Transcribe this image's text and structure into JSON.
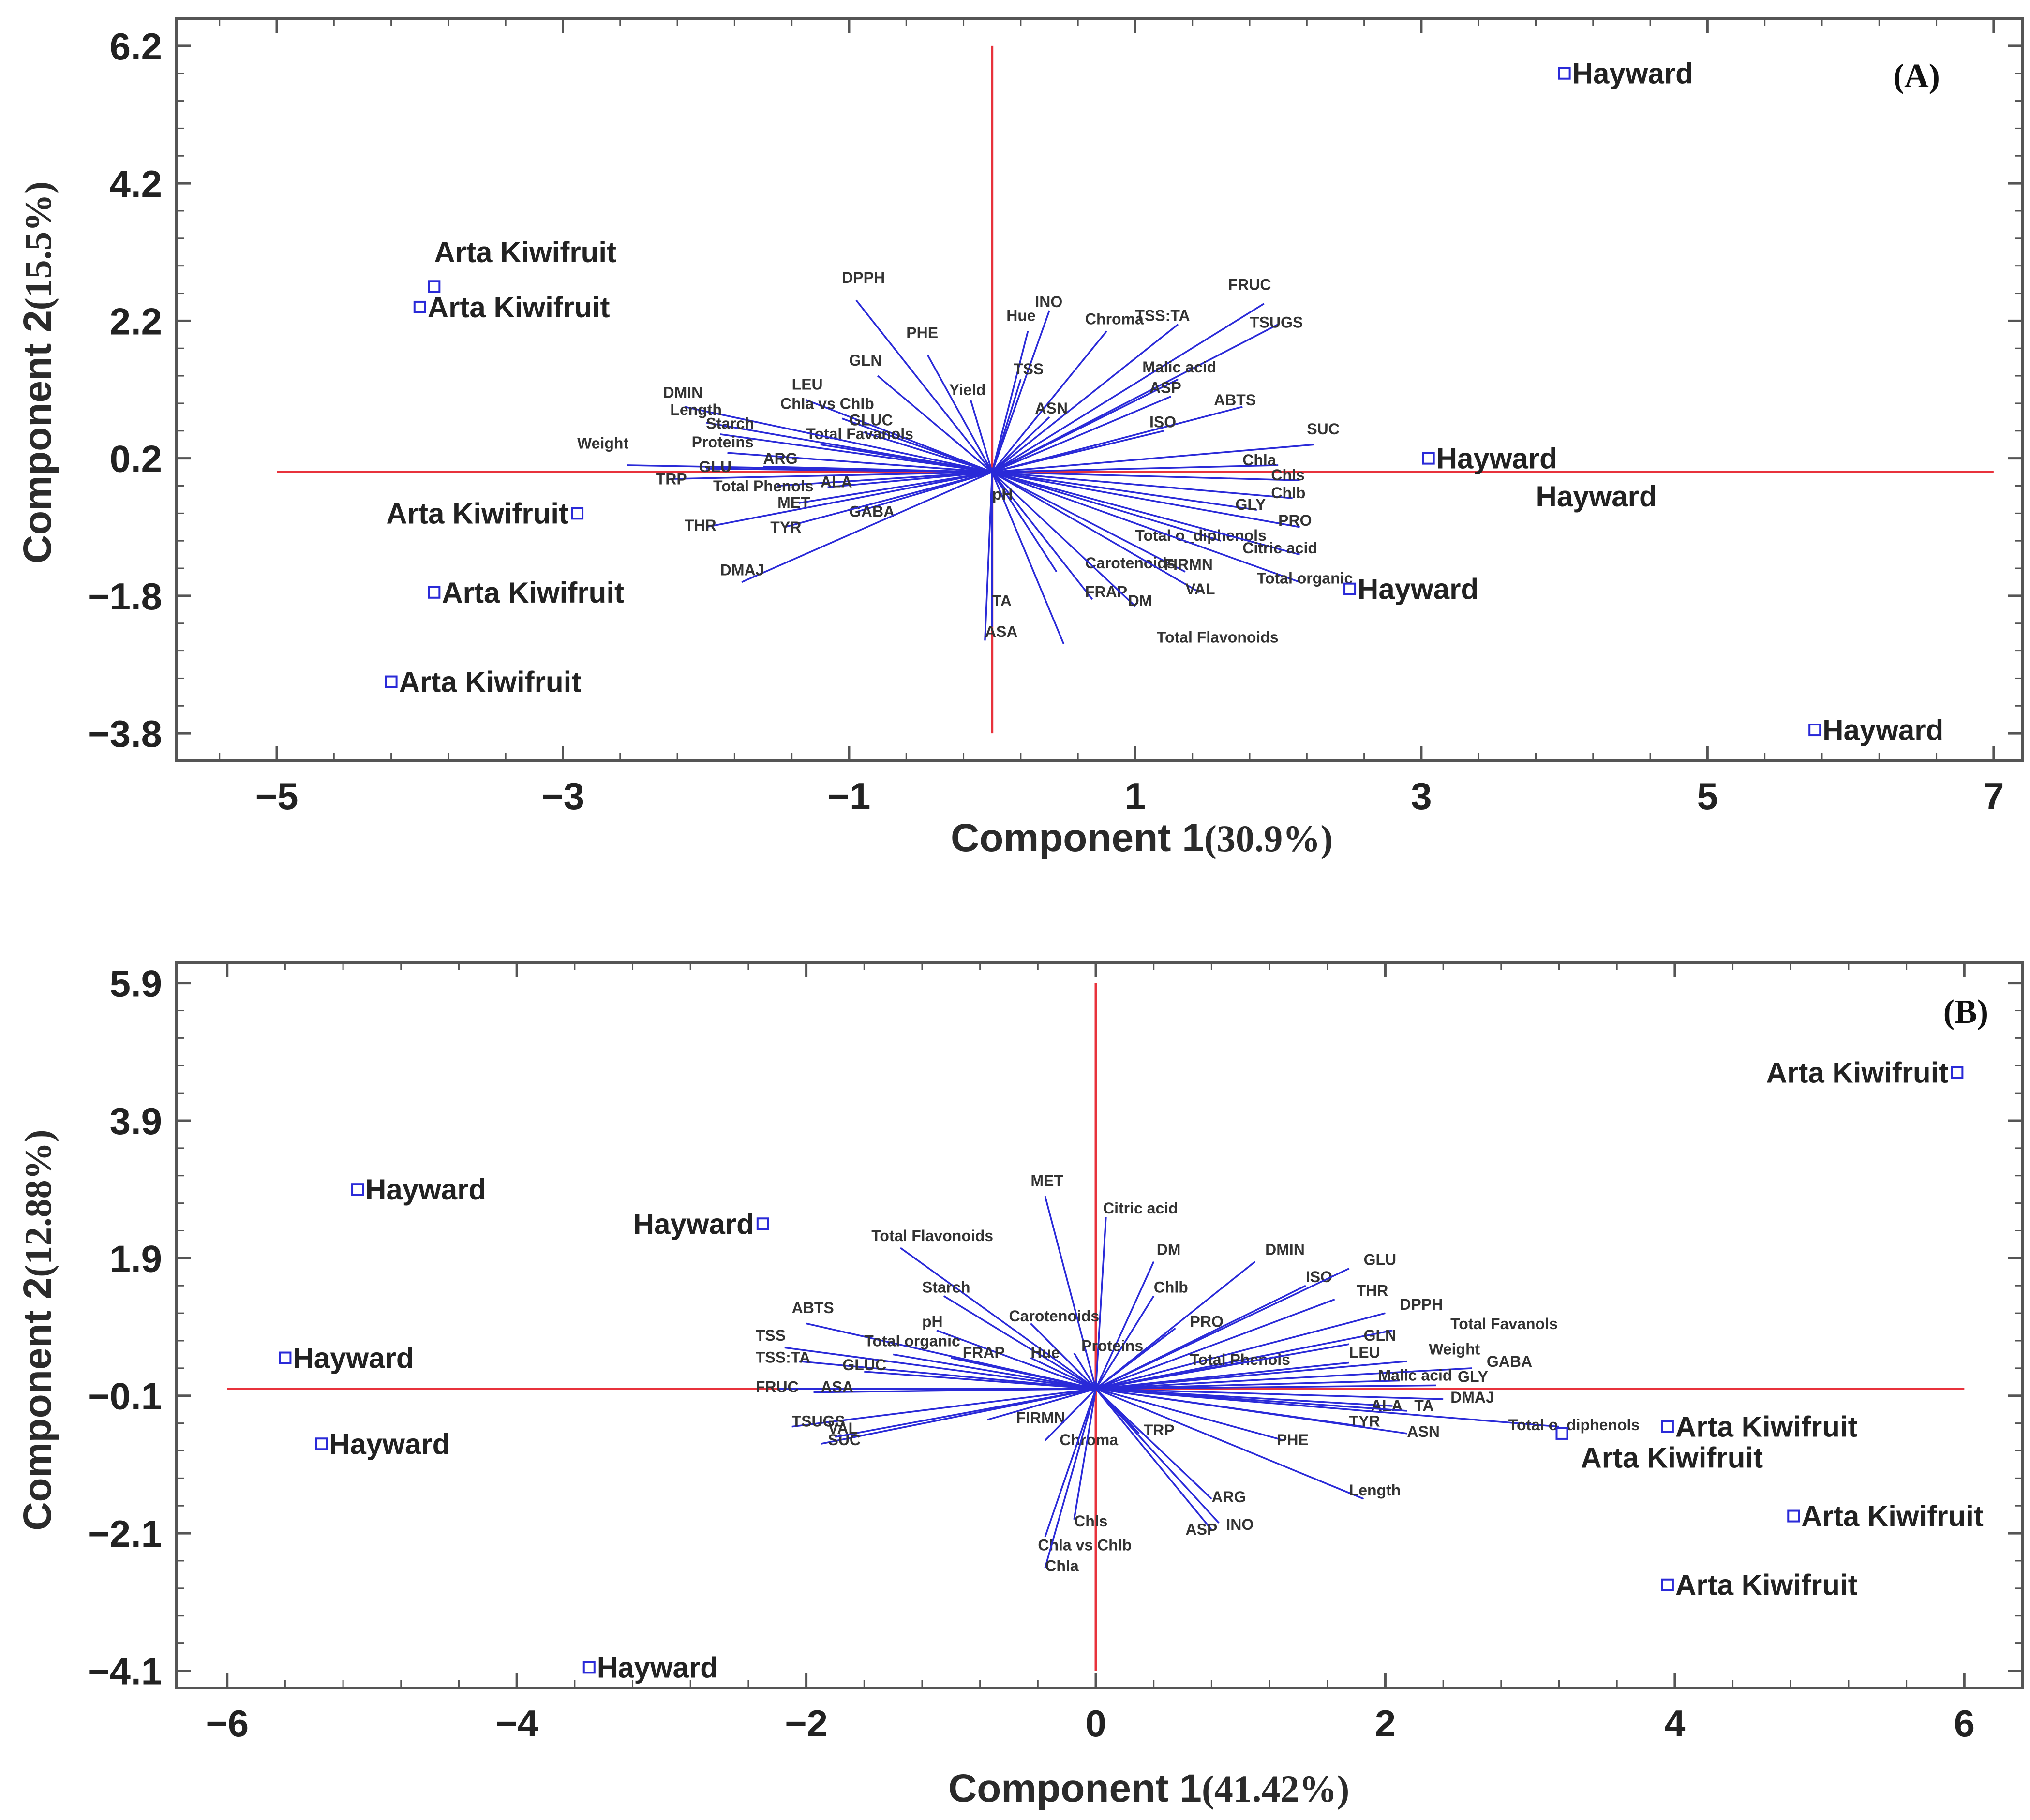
{
  "chart_data": [
    {
      "type": "scatter",
      "panel_label": "(A)",
      "xlabel": "Component 1",
      "xlabel_pct": "(30.9%)",
      "ylabel": "Component 2",
      "ylabel_pct": "(15.5%)",
      "xlim": [
        -5.7,
        7.2
      ],
      "ylim": [
        -4.2,
        6.6
      ],
      "xticks": [
        -5,
        -3,
        -1,
        1,
        3,
        5,
        7
      ],
      "xtick_labels": [
        "−5",
        "−3",
        "−1",
        "1",
        "3",
        "5",
        "7"
      ],
      "yticks": [
        6.2,
        4.2,
        2.2,
        0.2,
        -1.8,
        -3.8
      ],
      "ytick_labels": [
        "6.2",
        "4.2",
        "2.2",
        "0.2",
        "−1.8",
        "−3.8"
      ],
      "ref_x": [
        -5,
        7
      ],
      "ref_y": [
        -3.8,
        6.2
      ],
      "points": [
        {
          "x": 4.0,
          "y": 5.8,
          "label": "Hayward",
          "label_side": "right"
        },
        {
          "x": -3.9,
          "y": 2.7,
          "label": "",
          "label_side": "right"
        },
        {
          "x": -4.0,
          "y": 2.4,
          "label": "Arta Kiwifruit",
          "label_side": "right"
        },
        {
          "x": 3.05,
          "y": 0.2,
          "label": "Hayward",
          "label_side": "right"
        },
        {
          "x": -2.9,
          "y": -0.6,
          "label": "Arta Kiwifruit",
          "label_side": "left"
        },
        {
          "x": -3.9,
          "y": -1.75,
          "label": "Arta Kiwifruit",
          "label_side": "right"
        },
        {
          "x": 2.5,
          "y": -1.7,
          "label": "Hayward",
          "label_side": "right"
        },
        {
          "x": -4.2,
          "y": -3.05,
          "label": "Arta Kiwifruit",
          "label_side": "right"
        },
        {
          "x": 5.75,
          "y": -3.75,
          "label": "Hayward",
          "label_side": "right"
        }
      ],
      "free_labels": [
        {
          "x": -3.9,
          "y": 3.2,
          "text": "Arta Kiwifruit"
        },
        {
          "x": 3.8,
          "y": -0.35,
          "text": "Hayward"
        }
      ],
      "vectors": [
        {
          "name": "DPPH",
          "x": -0.95,
          "y": 2.5,
          "lx": -1.05,
          "ly": 2.75
        },
        {
          "name": "PHE",
          "x": -0.45,
          "y": 1.7,
          "lx": -0.6,
          "ly": 1.95
        },
        {
          "name": "GLN",
          "x": -0.8,
          "y": 1.4,
          "lx": -1.0,
          "ly": 1.55
        },
        {
          "name": "LEU",
          "x": -1.3,
          "y": 1.05,
          "lx": -1.4,
          "ly": 1.2
        },
        {
          "name": "Chla vs Chlb",
          "x": -1.05,
          "y": 0.78,
          "lx": -1.48,
          "ly": 0.92
        },
        {
          "name": "GLUC",
          "x": -0.9,
          "y": 0.58,
          "lx": -1.0,
          "ly": 0.68
        },
        {
          "name": "Total Favanols",
          "x": -1.2,
          "y": 0.4,
          "lx": -1.3,
          "ly": 0.48
        },
        {
          "name": "DMIN",
          "x": -2.15,
          "y": 0.95,
          "lx": -2.3,
          "ly": 1.08
        },
        {
          "name": "Length",
          "x": -2.0,
          "y": 0.72,
          "lx": -2.25,
          "ly": 0.83
        },
        {
          "name": "Starch",
          "x": -1.9,
          "y": 0.55,
          "lx": -2.0,
          "ly": 0.63
        },
        {
          "name": "Proteins",
          "x": -1.85,
          "y": 0.28,
          "lx": -2.1,
          "ly": 0.36
        },
        {
          "name": "Weight",
          "x": -2.55,
          "y": 0.1,
          "lx": -2.9,
          "ly": 0.34
        },
        {
          "name": "ARG",
          "x": -1.6,
          "y": 0.08,
          "lx": -1.6,
          "ly": 0.12
        },
        {
          "name": "GLU",
          "x": -2.0,
          "y": 0.05,
          "lx": -2.05,
          "ly": 0.0
        },
        {
          "name": "TRP",
          "x": -2.25,
          "y": -0.1,
          "lx": -2.35,
          "ly": -0.18
        },
        {
          "name": "Total Phenols",
          "x": -1.5,
          "y": -0.2,
          "lx": -1.95,
          "ly": -0.28
        },
        {
          "name": "ALA",
          "x": -1.15,
          "y": -0.22,
          "lx": -1.2,
          "ly": -0.22
        },
        {
          "name": "MET",
          "x": -1.35,
          "y": -0.45,
          "lx": -1.5,
          "ly": -0.52
        },
        {
          "name": "GABA",
          "x": -0.95,
          "y": -0.58,
          "lx": -1.0,
          "ly": -0.65
        },
        {
          "name": "THR",
          "x": -2.0,
          "y": -0.8,
          "lx": -2.15,
          "ly": -0.85
        },
        {
          "name": "TYR",
          "x": -1.45,
          "y": -0.8,
          "lx": -1.55,
          "ly": -0.88
        },
        {
          "name": "DMAJ",
          "x": -1.75,
          "y": -1.6,
          "lx": -1.9,
          "ly": -1.5
        },
        {
          "name": "Hue",
          "x": 0.25,
          "y": 2.05,
          "lx": 0.1,
          "ly": 2.2
        },
        {
          "name": "INO",
          "x": 0.4,
          "y": 2.35,
          "lx": 0.3,
          "ly": 2.4
        },
        {
          "name": "Chroma",
          "x": 0.8,
          "y": 2.05,
          "lx": 0.65,
          "ly": 2.15
        },
        {
          "name": "TSS:TA",
          "x": 1.3,
          "y": 2.15,
          "lx": 1.0,
          "ly": 2.2
        },
        {
          "name": "FRUC",
          "x": 1.9,
          "y": 2.45,
          "lx": 1.65,
          "ly": 2.65
        },
        {
          "name": "TSUGS",
          "x": 2.0,
          "y": 2.15,
          "lx": 1.8,
          "ly": 2.1
        },
        {
          "name": "TSS",
          "x": 0.2,
          "y": 1.35,
          "lx": 0.15,
          "ly": 1.42
        },
        {
          "name": "Yield",
          "x": -0.15,
          "y": 1.05,
          "lx": -0.3,
          "ly": 1.12
        },
        {
          "name": "ASN",
          "x": 0.4,
          "y": 0.8,
          "lx": 0.3,
          "ly": 0.85
        },
        {
          "name": "Malic acid",
          "x": 1.3,
          "y": 1.35,
          "lx": 1.05,
          "ly": 1.45
        },
        {
          "name": "ASP",
          "x": 1.25,
          "y": 1.1,
          "lx": 1.1,
          "ly": 1.15
        },
        {
          "name": "ABTS",
          "x": 1.75,
          "y": 0.95,
          "lx": 1.55,
          "ly": 0.97
        },
        {
          "name": "ISO",
          "x": 1.2,
          "y": 0.6,
          "lx": 1.1,
          "ly": 0.65
        },
        {
          "name": "SUC",
          "x": 2.25,
          "y": 0.4,
          "lx": 2.2,
          "ly": 0.55
        },
        {
          "name": "Chla",
          "x": 2.0,
          "y": 0.1,
          "lx": 1.75,
          "ly": 0.1
        },
        {
          "name": "Chls",
          "x": 2.15,
          "y": -0.12,
          "lx": 1.95,
          "ly": -0.12
        },
        {
          "name": "Chlb",
          "x": 2.1,
          "y": -0.38,
          "lx": 1.95,
          "ly": -0.38
        },
        {
          "name": "GLY",
          "x": 1.85,
          "y": -0.55,
          "lx": 1.7,
          "ly": -0.55
        },
        {
          "name": "PRO",
          "x": 2.15,
          "y": -0.8,
          "lx": 2.0,
          "ly": -0.78
        },
        {
          "name": "Total o_diphenols",
          "x": 1.6,
          "y": -1.0,
          "lx": 1.0,
          "ly": -1.0
        },
        {
          "name": "Citric acid",
          "x": 2.15,
          "y": -1.2,
          "lx": 1.75,
          "ly": -1.18
        },
        {
          "name": "FIRMN",
          "x": 1.35,
          "y": -1.45,
          "lx": 1.2,
          "ly": -1.42
        },
        {
          "name": "Total organic",
          "x": 2.15,
          "y": -1.6,
          "lx": 1.85,
          "ly": -1.62
        },
        {
          "name": "Carotenoids",
          "x": 0.45,
          "y": -1.45,
          "lx": 0.65,
          "ly": -1.4
        },
        {
          "name": "FRAP",
          "x": 0.7,
          "y": -1.85,
          "lx": 0.65,
          "ly": -1.82
        },
        {
          "name": "DM",
          "x": 1.0,
          "y": -1.95,
          "lx": 0.95,
          "ly": -1.95
        },
        {
          "name": "VAL",
          "x": 1.45,
          "y": -1.75,
          "lx": 1.35,
          "ly": -1.78
        },
        {
          "name": "TA",
          "x": 0.0,
          "y": -2.25,
          "lx": 0.0,
          "ly": -1.95
        },
        {
          "name": "ASA",
          "x": -0.05,
          "y": -2.45,
          "lx": -0.05,
          "ly": -2.4
        },
        {
          "name": "Total Flavonoids",
          "x": 0.5,
          "y": -2.5,
          "lx": 1.15,
          "ly": -2.48
        },
        {
          "name": "pH",
          "x": 0.0,
          "y": -0.45,
          "lx": 0.0,
          "ly": -0.4
        }
      ]
    },
    {
      "type": "scatter",
      "panel_label": "(B)",
      "xlabel": "Component 1",
      "xlabel_pct": "(41.42%)",
      "ylabel": "Component 2",
      "ylabel_pct": "(12.88%)",
      "xlim": [
        -6.35,
        6.4
      ],
      "ylim": [
        -4.35,
        6.2
      ],
      "xticks": [
        -6,
        -4,
        -2,
        0,
        2,
        4,
        6
      ],
      "xtick_labels": [
        "−6",
        "−4",
        "−2",
        "0",
        "2",
        "4",
        "6"
      ],
      "yticks": [
        5.9,
        3.9,
        1.9,
        -0.1,
        -2.1,
        -4.1
      ],
      "ytick_labels": [
        "5.9",
        "3.9",
        "1.9",
        "−0.1",
        "−2.1",
        "−4.1"
      ],
      "ref_x": [
        -6,
        6
      ],
      "ref_y": [
        -4.1,
        5.9
      ],
      "points": [
        {
          "x": 5.95,
          "y": 4.6,
          "label": "Arta Kiwifruit",
          "label_side": "left"
        },
        {
          "x": -5.1,
          "y": 2.9,
          "label": "Hayward",
          "label_side": "right"
        },
        {
          "x": -2.3,
          "y": 2.4,
          "label": "Hayward",
          "label_side": "left"
        },
        {
          "x": -5.6,
          "y": 0.45,
          "label": "Hayward",
          "label_side": "right"
        },
        {
          "x": -5.35,
          "y": -0.8,
          "label": "Hayward",
          "label_side": "right"
        },
        {
          "x": 3.95,
          "y": -0.55,
          "label": "Arta Kiwifruit",
          "label_side": "right"
        },
        {
          "x": 3.22,
          "y": -0.65,
          "label": "",
          "label_side": "right"
        },
        {
          "x": 4.82,
          "y": -1.85,
          "label": "Arta Kiwifruit",
          "label_side": "right"
        },
        {
          "x": 3.95,
          "y": -2.85,
          "label": "Arta Kiwifruit",
          "label_side": "right"
        },
        {
          "x": -3.5,
          "y": -4.05,
          "label": "Hayward",
          "label_side": "right"
        }
      ],
      "free_labels": [
        {
          "x": 3.35,
          "y": -1.0,
          "text": "Arta Kiwifruit"
        }
      ],
      "vectors": [
        {
          "name": "MET",
          "x": -0.35,
          "y": 2.8,
          "lx": -0.45,
          "ly": 2.95
        },
        {
          "name": "Citric acid",
          "x": 0.07,
          "y": 2.5,
          "lx": 0.05,
          "ly": 2.55
        },
        {
          "name": "Total Flavonoids",
          "x": -1.35,
          "y": 2.05,
          "lx": -1.55,
          "ly": 2.15
        },
        {
          "name": "DM",
          "x": 0.4,
          "y": 1.85,
          "lx": 0.42,
          "ly": 1.95
        },
        {
          "name": "DMIN",
          "x": 1.1,
          "y": 1.85,
          "lx": 1.17,
          "ly": 1.95
        },
        {
          "name": "Starch",
          "x": -1.05,
          "y": 1.35,
          "lx": -1.2,
          "ly": 1.4
        },
        {
          "name": "Chlb",
          "x": 0.4,
          "y": 1.35,
          "lx": 0.4,
          "ly": 1.4
        },
        {
          "name": "ISO",
          "x": 1.45,
          "y": 1.5,
          "lx": 1.45,
          "ly": 1.55
        },
        {
          "name": "GLU",
          "x": 1.75,
          "y": 1.75,
          "lx": 1.85,
          "ly": 1.8
        },
        {
          "name": "THR",
          "x": 1.65,
          "y": 1.3,
          "lx": 1.8,
          "ly": 1.35
        },
        {
          "name": "DPPH",
          "x": 2.0,
          "y": 1.1,
          "lx": 2.1,
          "ly": 1.15
        },
        {
          "name": "Total Favanols",
          "x": 2.05,
          "y": 0.85,
          "lx": 2.45,
          "ly": 0.87
        },
        {
          "name": "Carotenoids",
          "x": -0.45,
          "y": 0.95,
          "lx": -0.6,
          "ly": 0.98
        },
        {
          "name": "pH",
          "x": -1.1,
          "y": 0.85,
          "lx": -1.2,
          "ly": 0.9
        },
        {
          "name": "PRO",
          "x": 0.55,
          "y": 0.88,
          "lx": 0.65,
          "ly": 0.9
        },
        {
          "name": "ABTS",
          "x": -2.0,
          "y": 0.95,
          "lx": -2.1,
          "ly": 1.1
        },
        {
          "name": "TSS",
          "x": -2.15,
          "y": 0.6,
          "lx": -2.35,
          "ly": 0.7
        },
        {
          "name": "Total organic",
          "x": -1.4,
          "y": 0.5,
          "lx": -1.6,
          "ly": 0.62
        },
        {
          "name": "TSS:TA",
          "x": -2.05,
          "y": 0.4,
          "lx": -2.35,
          "ly": 0.38
        },
        {
          "name": "GLUC",
          "x": -1.6,
          "y": 0.25,
          "lx": -1.75,
          "ly": 0.27
        },
        {
          "name": "FRAP",
          "x": -1.0,
          "y": 0.45,
          "lx": -0.92,
          "ly": 0.45
        },
        {
          "name": "Hue",
          "x": -0.45,
          "y": 0.45,
          "lx": -0.45,
          "ly": 0.45
        },
        {
          "name": "Proteins",
          "x": -0.15,
          "y": 0.52,
          "lx": -0.1,
          "ly": 0.55
        },
        {
          "name": "Total Phenols",
          "x": 1.05,
          "y": 0.4,
          "lx": 0.65,
          "ly": 0.35
        },
        {
          "name": "GLN",
          "x": 1.75,
          "y": 0.65,
          "lx": 1.85,
          "ly": 0.7
        },
        {
          "name": "LEU",
          "x": 1.75,
          "y": 0.38,
          "lx": 1.75,
          "ly": 0.45
        },
        {
          "name": "Weight",
          "x": 2.15,
          "y": 0.4,
          "lx": 2.3,
          "ly": 0.5
        },
        {
          "name": "GABA",
          "x": 2.6,
          "y": 0.3,
          "lx": 2.7,
          "ly": 0.32
        },
        {
          "name": "Malic acid",
          "x": 2.1,
          "y": 0.12,
          "lx": 1.95,
          "ly": 0.12
        },
        {
          "name": "GLY",
          "x": 2.35,
          "y": 0.05,
          "lx": 2.5,
          "ly": 0.1
        },
        {
          "name": "FRUC",
          "x": -2.2,
          "y": 0.0,
          "lx": -2.35,
          "ly": -0.05
        },
        {
          "name": "ASA",
          "x": -1.95,
          "y": -0.05,
          "lx": -1.9,
          "ly": -0.05
        },
        {
          "name": "DMAJ",
          "x": 2.4,
          "y": -0.15,
          "lx": 2.45,
          "ly": -0.2
        },
        {
          "name": "ALA",
          "x": 2.05,
          "y": -0.25,
          "lx": 1.9,
          "ly": -0.32
        },
        {
          "name": "TA",
          "x": 2.15,
          "y": -0.32,
          "lx": 2.2,
          "ly": -0.32
        },
        {
          "name": "TSUGS",
          "x": -2.1,
          "y": -0.55,
          "lx": -2.1,
          "ly": -0.55
        },
        {
          "name": "SUC",
          "x": -1.9,
          "y": -0.8,
          "lx": -1.85,
          "ly": -0.82
        },
        {
          "name": "VAL",
          "x": -1.8,
          "y": -0.7,
          "lx": -1.85,
          "ly": -0.65
        },
        {
          "name": "TYR",
          "x": 1.85,
          "y": -0.55,
          "lx": 1.75,
          "ly": -0.55
        },
        {
          "name": "ASN",
          "x": 2.15,
          "y": -0.65,
          "lx": 2.15,
          "ly": -0.7
        },
        {
          "name": "Total o_diphenols",
          "x": 3.2,
          "y": -0.55,
          "lx": 2.85,
          "ly": -0.6
        },
        {
          "name": "FIRMN",
          "x": -0.75,
          "y": -0.45,
          "lx": -0.55,
          "ly": -0.5
        },
        {
          "name": "Chroma",
          "x": -0.35,
          "y": -0.75,
          "lx": -0.25,
          "ly": -0.82
        },
        {
          "name": "TRP",
          "x": 0.3,
          "y": -0.65,
          "lx": 0.33,
          "ly": -0.68
        },
        {
          "name": "PHE",
          "x": 1.3,
          "y": -0.75,
          "lx": 1.25,
          "ly": -0.82
        },
        {
          "name": "Length",
          "x": 1.85,
          "y": -1.6,
          "lx": 1.75,
          "ly": -1.55
        },
        {
          "name": "ARG",
          "x": 0.8,
          "y": -1.6,
          "lx": 0.8,
          "ly": -1.65
        },
        {
          "name": "INO",
          "x": 0.85,
          "y": -1.95,
          "lx": 0.9,
          "ly": -2.05
        },
        {
          "name": "ASP",
          "x": 0.8,
          "y": -2.05,
          "lx": 0.62,
          "ly": -2.12
        },
        {
          "name": "Chls",
          "x": -0.15,
          "y": -1.9,
          "lx": -0.15,
          "ly": -2.0
        },
        {
          "name": "Chla vs Chlb",
          "x": -0.35,
          "y": -2.15,
          "lx": -0.4,
          "ly": -2.35
        },
        {
          "name": "Chla",
          "x": -0.35,
          "y": -2.6,
          "lx": -0.35,
          "ly": -2.65
        }
      ]
    }
  ]
}
